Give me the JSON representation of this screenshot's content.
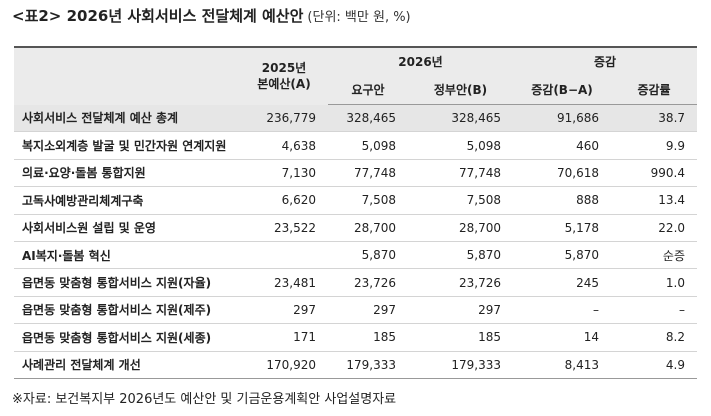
{
  "title": {
    "main": "<표2> 2026년 사회서비스 전달체계 예산안",
    "unit": "(단위: 백만 원, %)"
  },
  "table": {
    "header": {
      "base": [
        "2025년",
        "본예산(A)"
      ],
      "year2026": "2026년",
      "request": "요구안",
      "government": "정부안(B)",
      "change": "증감",
      "diff": "증감(B−A)",
      "rate": "증감률"
    },
    "rows": [
      [
        "사회서비스 전달체계 예산 총계",
        "236,779",
        "328,465",
        "328,465",
        "91,686",
        "38.7"
      ],
      [
        "복지소외계층 발굴 및 민간자원 연계지원",
        "4,638",
        "5,098",
        "5,098",
        "460",
        "9.9"
      ],
      [
        "의료·요양·돌봄 통합지원",
        "7,130",
        "77,748",
        "77,748",
        "70,618",
        "990.4"
      ],
      [
        "고독사예방관리체계구축",
        "6,620",
        "7,508",
        "7,508",
        "888",
        "13.4"
      ],
      [
        "사회서비스원 설립 및 운영",
        "23,522",
        "28,700",
        "28,700",
        "5,178",
        "22.0"
      ],
      [
        "AI복지·돌봄 혁신",
        null,
        "5,870",
        "5,870",
        "5,870",
        "순증"
      ],
      [
        "읍면동 맞춤형 통합서비스 지원(자율)",
        "23,481",
        "23,726",
        "23,726",
        "245",
        "1.0"
      ],
      [
        "읍면동 맞춤형 통합서비스 지원(제주)",
        "297",
        "297",
        "297",
        "–",
        "–"
      ],
      [
        "읍면동 맞춤형 통합서비스 지원(세종)",
        "171",
        "185",
        "185",
        "14",
        "8.2"
      ],
      [
        "사례관리 전달체계 개선",
        "170,920",
        "179,333",
        "179,333",
        "8,413",
        "4.9"
      ]
    ]
  },
  "note": "※자료: 보건복지부 2026년도 예산안 및 기금운용계획안 사업설명자료"
}
